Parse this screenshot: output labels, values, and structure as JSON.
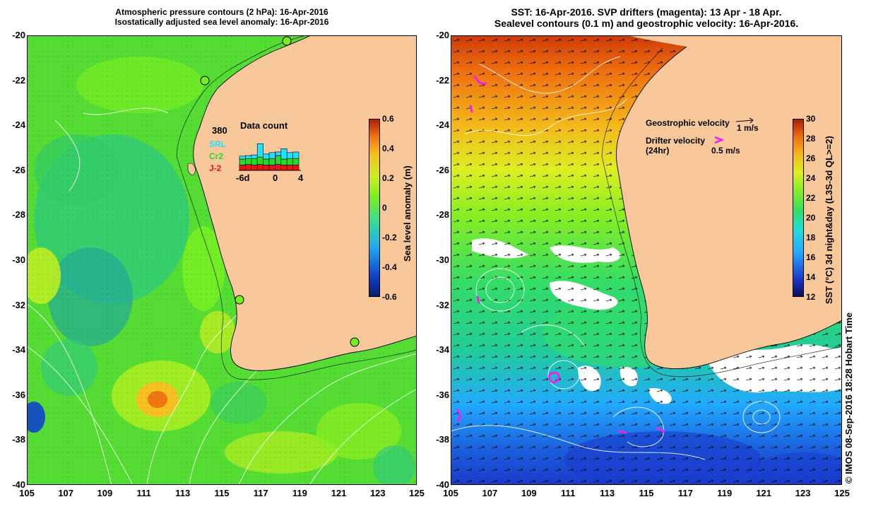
{
  "left_panel": {
    "title_line1": "Atmospheric pressure contours (2 hPa): 16-Apr-2016",
    "title_line2": "Isostatically adjusted sea level anomaly: 16-Apr-2016",
    "colorbar_label": "Sea level anomaly (m)",
    "colorbar_ticks": [
      "0.6",
      "0.4",
      "0.2",
      "0",
      "-0.2",
      "-0.4",
      "-0.6"
    ],
    "data_count": {
      "title": "Data count",
      "max": "380",
      "satellites": [
        "SRL",
        "Cr2",
        "J-2"
      ],
      "satellite_colors": [
        "#22e0ff",
        "#22dd22",
        "#ee1111"
      ],
      "x_ticks": [
        "-6d",
        "0",
        "4"
      ],
      "bars": [
        {
          "j2": 0.18,
          "cr2": 0.2,
          "srl": 0.1
        },
        {
          "j2": 0.2,
          "cr2": 0.2,
          "srl": 0.1
        },
        {
          "j2": 0.18,
          "cr2": 0.22,
          "srl": 0.12
        },
        {
          "j2": 0.2,
          "cr2": 0.25,
          "srl": 0.45
        },
        {
          "j2": 0.18,
          "cr2": 0.2,
          "srl": 0.17
        },
        {
          "j2": 0.18,
          "cr2": 0.22,
          "srl": 0.2
        },
        {
          "j2": 0.2,
          "cr2": 0.3,
          "srl": 0.12
        },
        {
          "j2": 0.18,
          "cr2": 0.2,
          "srl": 0.35
        },
        {
          "j2": 0.18,
          "cr2": 0.22,
          "srl": 0.2
        },
        {
          "j2": 0.18,
          "cr2": 0.22,
          "srl": 0.22
        }
      ]
    }
  },
  "right_panel": {
    "title_line1": "SST: 16-Apr-2016. SVP drifters (magenta): 13 Apr - 18 Apr.",
    "title_line2": "Sealevel contours (0.1 m) and geostrophic velocity: 16-Apr-2016.",
    "colorbar_label": "SST (°C) 3d night&day (L3S-3d QL>=2)",
    "colorbar_ticks": [
      "30",
      "28",
      "26",
      "24",
      "22",
      "20",
      "18",
      "16",
      "14",
      "12"
    ],
    "geostrophic_label": "Geostrophic velocity",
    "geostrophic_scale": "1 m/s",
    "drifter_label": "Drifter velocity",
    "drifter_sub": "(24hr)",
    "drifter_scale": "0.5 m/s",
    "drifter_color": "#ee22ee"
  },
  "axes": {
    "lat_ticks": [
      "-20",
      "-22",
      "-24",
      "-26",
      "-28",
      "-30",
      "-32",
      "-34",
      "-36",
      "-38",
      "-40"
    ],
    "lon_ticks": [
      "105",
      "107",
      "109",
      "111",
      "113",
      "115",
      "117",
      "119",
      "121",
      "123",
      "125"
    ]
  },
  "colors": {
    "land": "#f8c89a",
    "sla_cmap": [
      "#0a1a6e",
      "#1144cc",
      "#22aaee",
      "#33dd99",
      "#77ee22",
      "#ccee22",
      "#f5c020",
      "#ee7711",
      "#aa1d08"
    ],
    "sst_cmap": [
      "#0a0a5a",
      "#1a3acc",
      "#22aaff",
      "#22dddd",
      "#33dd66",
      "#88ee22",
      "#ddee22",
      "#f5b81a",
      "#ee7010",
      "#aa1a06"
    ]
  },
  "copyright": "© IMOS 08-Sep-2016 18:28 Hobart Time"
}
